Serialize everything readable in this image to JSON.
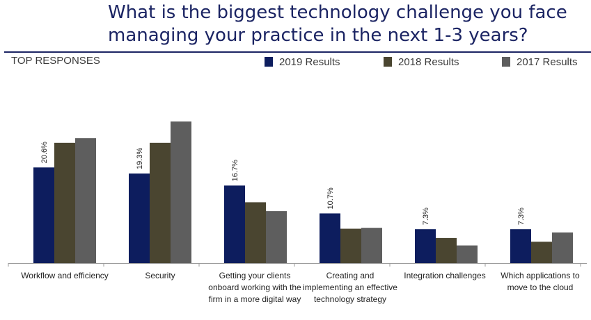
{
  "title_line1": "What is the biggest technology challenge you face",
  "title_line2": "managing your practice in the next 1-3 years?",
  "subtitle": "TOP RESPONSES",
  "colors": {
    "title": "#1b2463",
    "2019": "#0d1d5e",
    "2018": "#4a4530",
    "2017": "#5e5e5e"
  },
  "chart_data": {
    "type": "bar",
    "categories": [
      "Workflow and efficiency",
      "Security",
      "Getting your clients onboard working with the firm in a more digital way",
      "Creating and implementing an effective technology strategy",
      "Integration challenges",
      "Which applications to move to the cloud"
    ],
    "series": [
      {
        "name": "2019 Results",
        "values": [
          20.6,
          19.3,
          16.7,
          10.7,
          7.3,
          7.3
        ],
        "labels": [
          "20.6%",
          "19.3%",
          "16.7%",
          "10.7%",
          "7.3%",
          "7.3%"
        ]
      },
      {
        "name": "2018 Results",
        "values": [
          25.9,
          25.9,
          13.1,
          7.4,
          5.4,
          4.6
        ]
      },
      {
        "name": "2017 Results",
        "values": [
          26.9,
          30.5,
          11.2,
          7.6,
          3.8,
          6.6
        ]
      }
    ],
    "ylim": [
      0,
      32
    ],
    "grid": false,
    "legend_position": "top-right"
  }
}
